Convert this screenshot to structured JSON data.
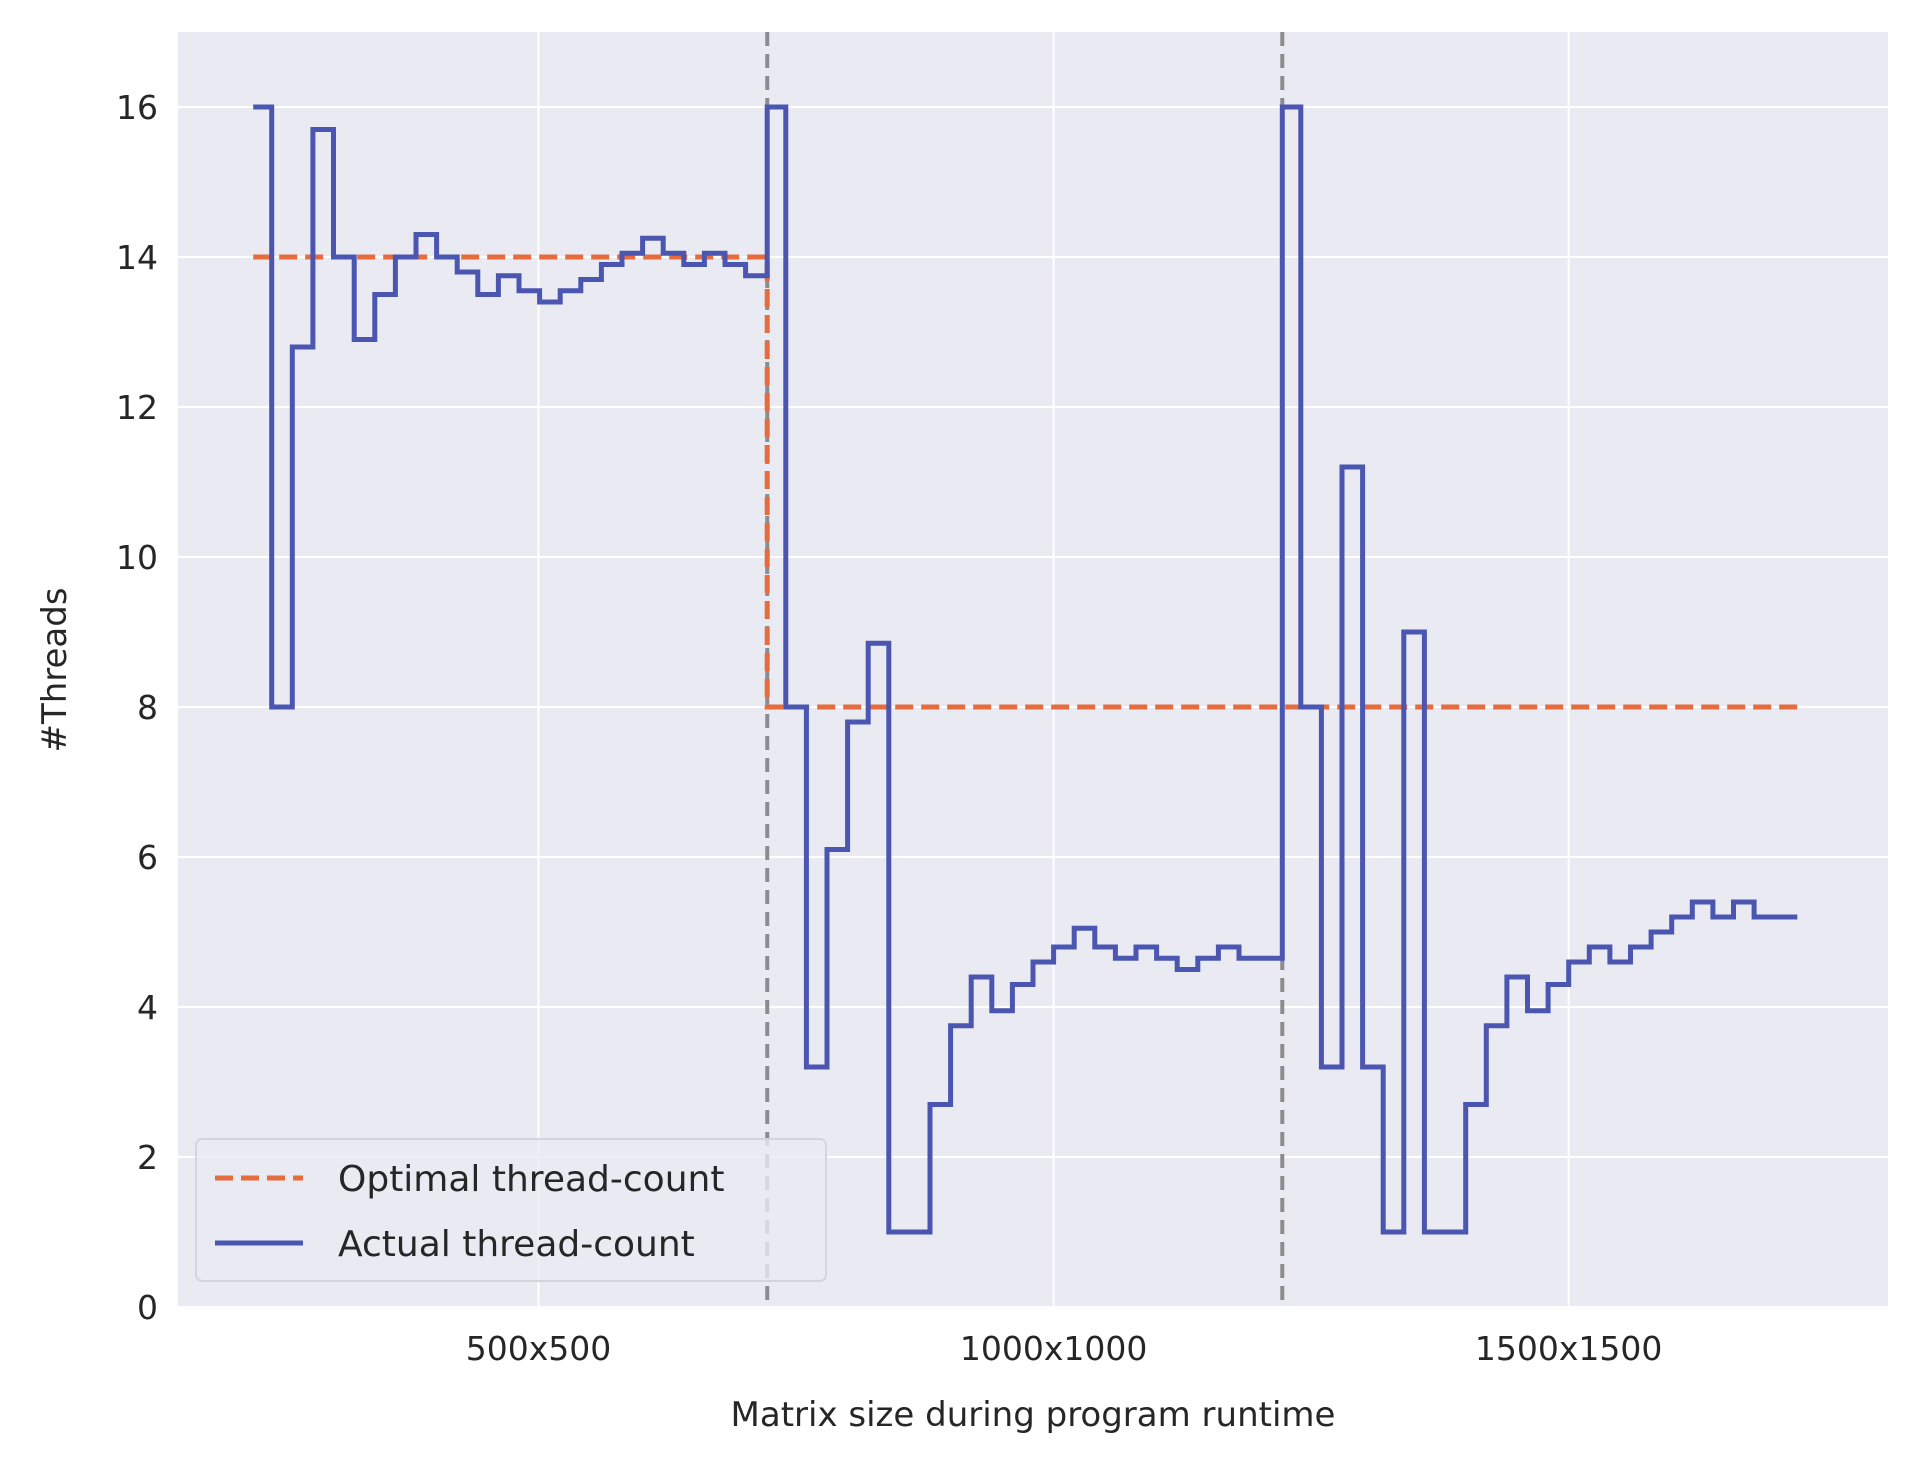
{
  "chart_data": {
    "type": "line",
    "title": "",
    "xlabel": "Matrix size during program runtime",
    "ylabel": "#Threads",
    "xlim": [
      0,
      1660
    ],
    "ylim": [
      0,
      17
    ],
    "y_ticks": [
      0,
      2,
      4,
      6,
      8,
      10,
      12,
      14,
      16
    ],
    "x_ticks": [
      {
        "value": 350,
        "label": "500x500"
      },
      {
        "value": 850,
        "label": "1000x1000"
      },
      {
        "value": 1350,
        "label": "1500x1500"
      }
    ],
    "grid": true,
    "background": "#eaeaf2",
    "legend_position": "lower-left",
    "vlines": {
      "x": [
        572,
        1072
      ],
      "color": "#8c8c8c",
      "style": "dashed"
    },
    "series": [
      {
        "name": "Optimal thread-count",
        "color": "#e66b3d",
        "style": "dashed",
        "step": true,
        "x": [
          73,
          572,
          572,
          1572
        ],
        "y": [
          14,
          14,
          8,
          8
        ]
      },
      {
        "name": "Actual thread-count",
        "color": "#4a56b0",
        "style": "solid",
        "step": true,
        "x": [
          73,
          91,
          111,
          131,
          151,
          171,
          191,
          211,
          231,
          251,
          271,
          291,
          311,
          331,
          351,
          371,
          391,
          411,
          431,
          451,
          471,
          491,
          511,
          531,
          551,
          572,
          590,
          610,
          630,
          650,
          670,
          690,
          710,
          730,
          750,
          770,
          790,
          810,
          830,
          850,
          870,
          890,
          910,
          930,
          950,
          970,
          990,
          1010,
          1030,
          1050,
          1072,
          1090,
          1110,
          1130,
          1150,
          1170,
          1190,
          1210,
          1230,
          1250,
          1270,
          1290,
          1310,
          1330,
          1350,
          1370,
          1390,
          1410,
          1430,
          1450,
          1470,
          1490,
          1510,
          1530,
          1550,
          1572
        ],
        "y": [
          16,
          8,
          12.8,
          15.7,
          14,
          12.9,
          13.5,
          14,
          14.3,
          14,
          13.8,
          13.5,
          13.75,
          13.55,
          13.4,
          13.55,
          13.7,
          13.9,
          14.05,
          14.25,
          14.05,
          13.9,
          14.05,
          13.9,
          13.75,
          16,
          8,
          3.2,
          6.1,
          7.8,
          8.85,
          1,
          1,
          2.7,
          3.75,
          4.4,
          3.95,
          4.3,
          4.6,
          4.8,
          5.05,
          4.8,
          4.65,
          4.8,
          4.65,
          4.5,
          4.65,
          4.8,
          4.65,
          4.65,
          16,
          8,
          3.2,
          11.2,
          3.2,
          1,
          9,
          1,
          1,
          2.7,
          3.75,
          4.4,
          3.95,
          4.3,
          4.6,
          4.8,
          4.6,
          4.8,
          5,
          5.2,
          5.4,
          5.2,
          5.4,
          5.2,
          5.2,
          5.2
        ]
      }
    ]
  }
}
